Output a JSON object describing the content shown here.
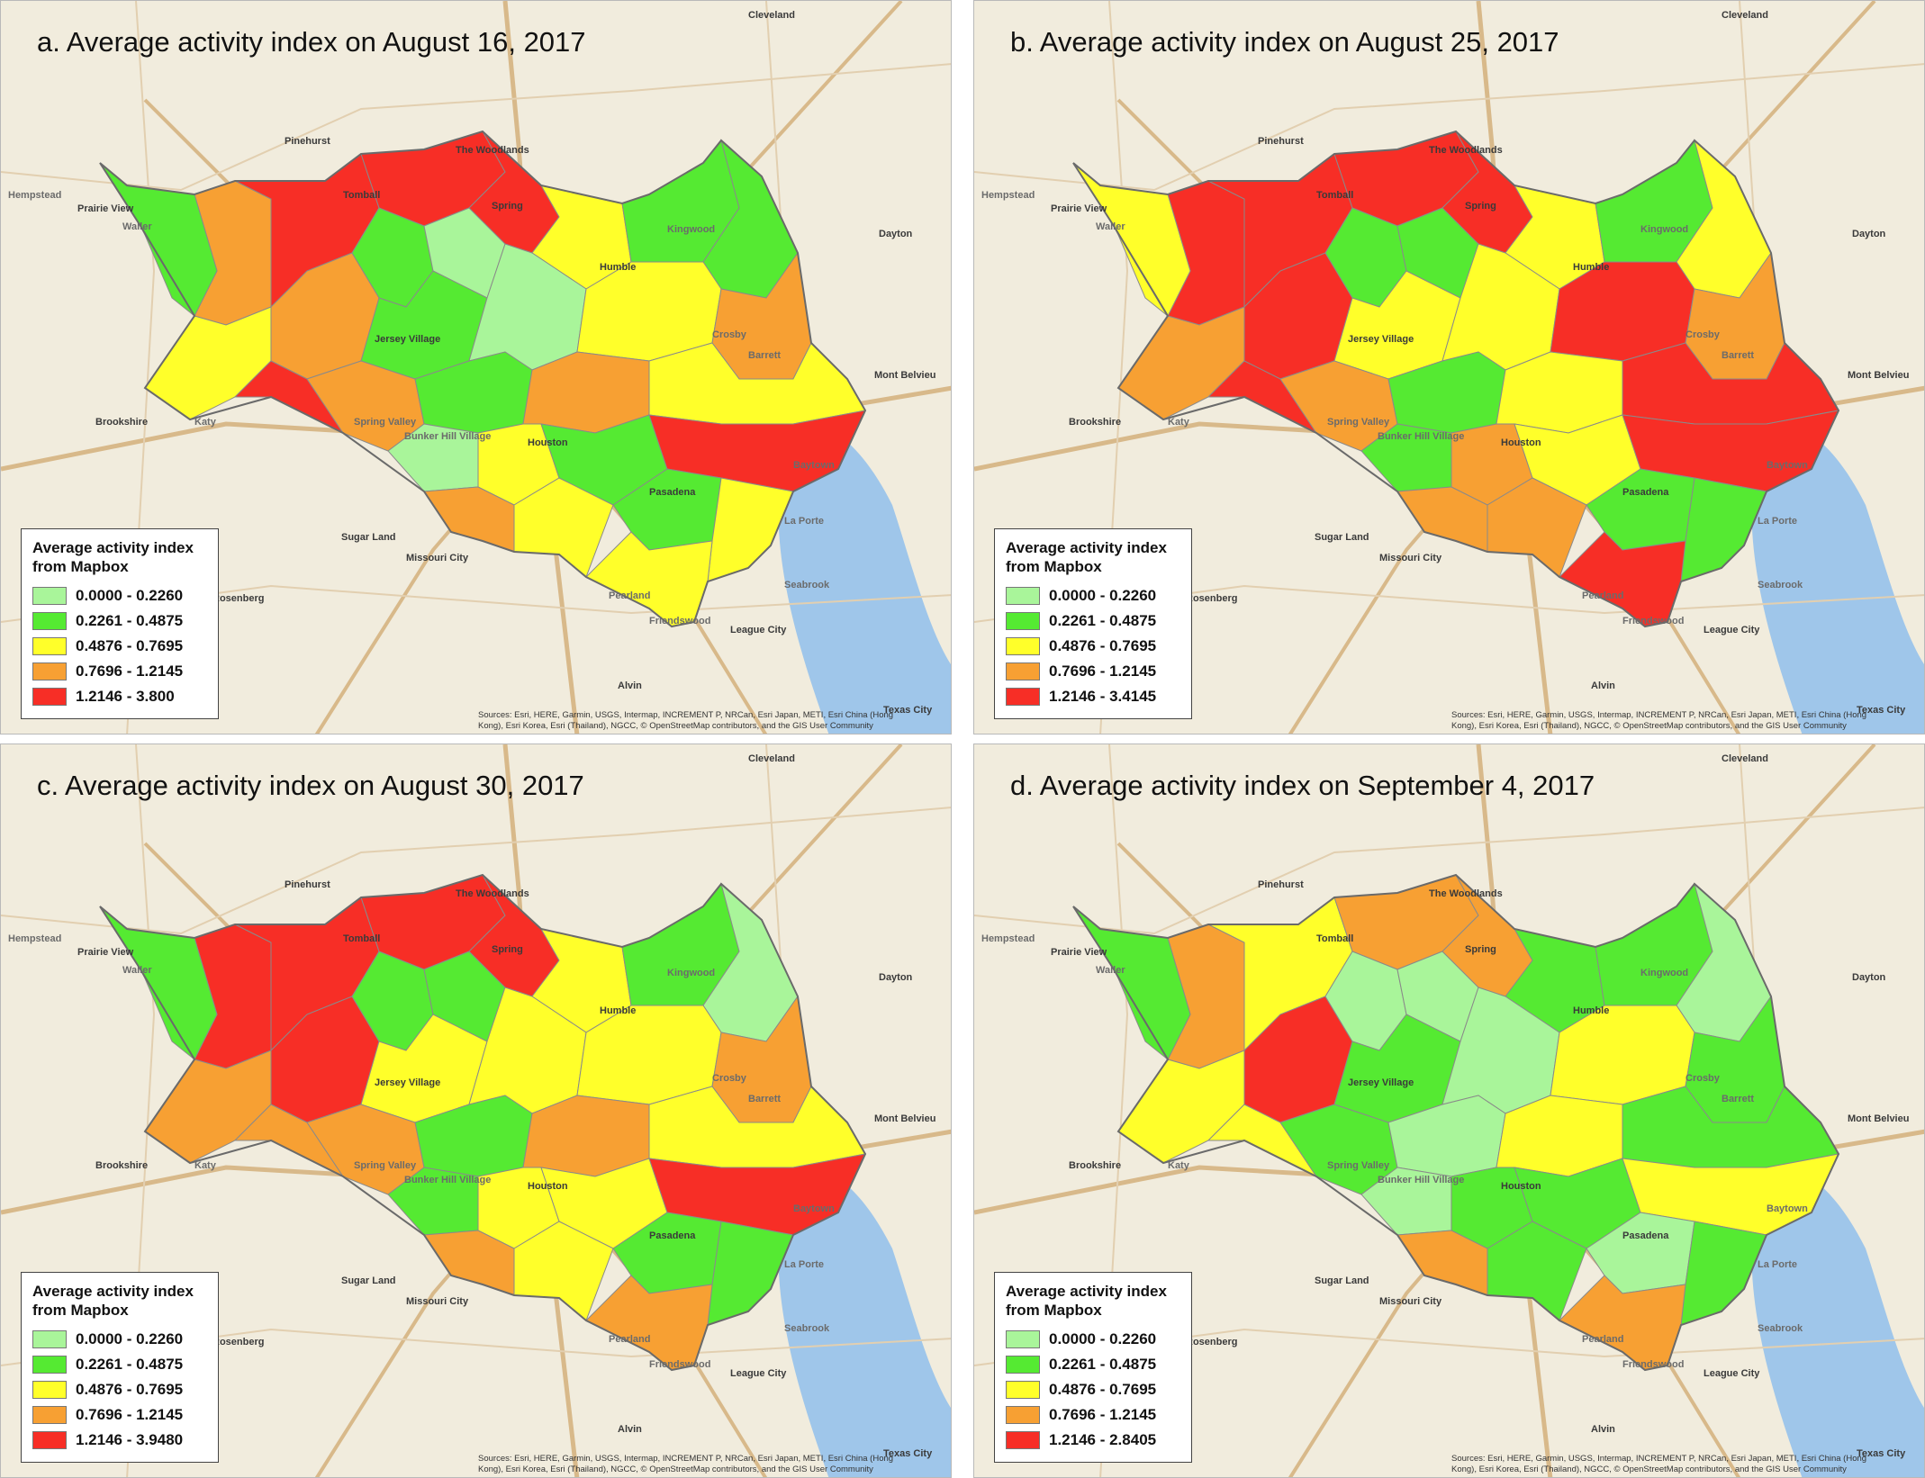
{
  "legend_title": "Average activity index\nfrom Mapbox",
  "colors": [
    "#a9f59a",
    "#55ea32",
    "#ffff2a",
    "#f7a033",
    "#f72e26"
  ],
  "attribution_lines": [
    "Sources: Esri, HERE, Garmin, USGS, Intermap, INCREMENT P, NRCan, Esri Japan, METI, Esri China (Hong",
    "Kong), Esri Korea, Esri (Thailand), NGCC, © OpenStreetMap contributors, and the GIS User Community"
  ],
  "place_labels": [
    "Cleveland",
    "The Woodlands",
    "Pinehurst",
    "Hempstead",
    "Prairie View",
    "Waller",
    "Tomball",
    "Spring",
    "Kingwood",
    "Humble",
    "Dayton",
    "Jersey Village",
    "Crosby",
    "Barrett",
    "Mont Belvieu",
    "Brookshire",
    "Katy",
    "Spring Valley",
    "Bunker Hill Village",
    "Houston",
    "Baytown",
    "Pasadena",
    "La Porte",
    "Sugar Land",
    "Missouri City",
    "Rosenberg",
    "Pearland",
    "Friendswood",
    "Seabrook",
    "League City",
    "Alvin",
    "Texas City"
  ],
  "panels": [
    {
      "title": "a. Average activity index on August 16, 2017",
      "legend": [
        "0.0000 - 0.2260",
        "0.2261 - 0.4875",
        "0.4876 - 0.7695",
        "0.7696 - 1.2145",
        "1.2146 - 3.800"
      ],
      "zones": [
        3,
        1,
        4,
        4,
        3,
        2,
        4,
        1,
        0,
        1,
        3,
        4,
        2,
        1,
        1,
        0,
        2,
        3,
        1,
        3,
        2,
        0,
        2,
        1,
        4,
        3,
        2,
        1,
        2,
        2
      ]
    },
    {
      "title": "b. Average activity index on August 25, 2017",
      "legend": [
        "0.0000 - 0.2260",
        "0.2261 - 0.4875",
        "0.4876 - 0.7695",
        "0.7696 - 1.2145",
        "1.2146 - 3.4145"
      ],
      "zones": [
        4,
        2,
        4,
        4,
        4,
        3,
        4,
        1,
        1,
        2,
        3,
        4,
        2,
        1,
        2,
        2,
        4,
        3,
        1,
        2,
        4,
        1,
        3,
        2,
        4,
        3,
        3,
        1,
        1,
        4
      ]
    },
    {
      "title": "c. Average activity index on August 30, 2017",
      "legend": [
        "0.0000 - 0.2260",
        "0.2261 - 0.4875",
        "0.4876 - 0.7695",
        "0.7696 - 1.2145",
        "1.2146 - 3.9480"
      ],
      "zones": [
        4,
        1,
        4,
        4,
        4,
        3,
        3,
        1,
        1,
        2,
        3,
        4,
        2,
        1,
        0,
        2,
        2,
        3,
        1,
        3,
        2,
        1,
        2,
        2,
        4,
        3,
        2,
        1,
        1,
        3
      ]
    },
    {
      "title": "d. Average activity index on September 4, 2017",
      "legend": [
        "0.0000 - 0.2260",
        "0.2261 - 0.4875",
        "0.4876 - 0.7695",
        "0.7696 - 1.2145",
        "1.2146 - 2.8405"
      ],
      "zones": [
        3,
        1,
        2,
        3,
        4,
        2,
        2,
        0,
        0,
        1,
        1,
        3,
        1,
        1,
        0,
        0,
        2,
        1,
        0,
        2,
        1,
        0,
        1,
        1,
        2,
        3,
        1,
        0,
        1,
        3
      ]
    }
  ]
}
